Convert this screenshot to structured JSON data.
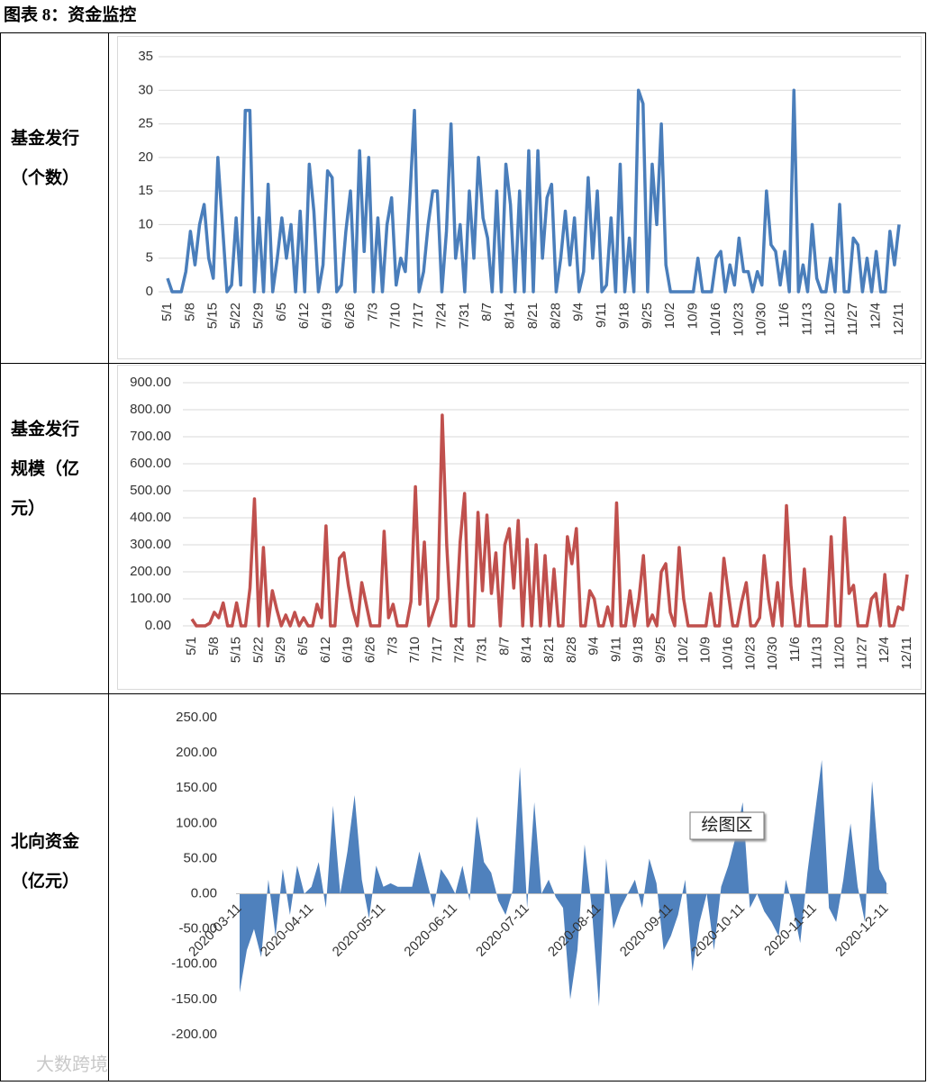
{
  "title": "图表 8：资金监控",
  "rows": [
    {
      "label": [
        "基金发行",
        "（个数）"
      ]
    },
    {
      "label": [
        "基金发行",
        "规模（亿",
        "元）"
      ]
    },
    {
      "label": [
        "北向资金",
        "（亿元）"
      ]
    }
  ],
  "watermark": "大数跨境",
  "chart_data": [
    {
      "type": "line",
      "color": "#4a7ebb",
      "grid": true,
      "categories": [
        "5/1",
        null,
        null,
        null,
        null,
        "5/8",
        null,
        null,
        null,
        null,
        "5/15",
        null,
        null,
        null,
        null,
        "5/22",
        null,
        null,
        null,
        null,
        "5/29",
        null,
        null,
        null,
        null,
        "6/5",
        null,
        null,
        null,
        null,
        "6/12",
        null,
        null,
        null,
        null,
        "6/19",
        null,
        null,
        null,
        null,
        "6/26",
        null,
        null,
        null,
        null,
        "7/3",
        null,
        null,
        null,
        null,
        "7/10",
        null,
        null,
        null,
        null,
        "7/17",
        null,
        null,
        null,
        null,
        "7/24",
        null,
        null,
        null,
        null,
        "7/31",
        null,
        null,
        null,
        null,
        "8/7",
        null,
        null,
        null,
        null,
        "8/14",
        null,
        null,
        null,
        null,
        "8/21",
        null,
        null,
        null,
        null,
        "8/28",
        null,
        null,
        null,
        null,
        "9/4",
        null,
        null,
        null,
        null,
        "9/11",
        null,
        null,
        null,
        null,
        "9/18",
        null,
        null,
        null,
        null,
        "9/25",
        null,
        null,
        null,
        null,
        "10/2",
        null,
        null,
        null,
        null,
        "10/9",
        null,
        null,
        null,
        null,
        "10/16",
        null,
        null,
        null,
        null,
        "10/23",
        null,
        null,
        null,
        null,
        "10/30",
        null,
        null,
        null,
        null,
        "11/6",
        null,
        null,
        null,
        null,
        "11/13",
        null,
        null,
        null,
        null,
        "11/20",
        null,
        null,
        null,
        null,
        "11/27",
        null,
        null,
        null,
        null,
        "12/4",
        null,
        null,
        null,
        null,
        "12/11"
      ],
      "values": [
        2,
        0,
        0,
        0,
        3,
        9,
        4,
        10,
        13,
        5,
        2,
        20,
        10,
        0,
        1,
        11,
        1,
        27,
        27,
        0,
        11,
        0,
        16,
        0,
        5,
        11,
        5,
        10,
        0,
        12,
        0,
        19,
        12,
        0,
        4,
        18,
        17,
        0,
        1,
        9,
        15,
        0,
        21,
        6,
        20,
        0,
        11,
        0,
        10,
        14,
        1,
        5,
        3,
        14,
        27,
        0,
        3,
        10,
        15,
        15,
        0,
        9,
        25,
        5,
        10,
        0,
        15,
        5,
        20,
        11,
        8,
        0,
        15,
        0,
        19,
        13,
        0,
        15,
        0,
        21,
        0,
        21,
        5,
        14,
        16,
        0,
        5,
        12,
        4,
        11,
        0,
        3,
        17,
        5,
        15,
        0,
        1,
        11,
        0,
        19,
        0,
        8,
        0,
        30,
        28,
        0,
        19,
        10,
        25,
        4,
        0,
        0,
        0,
        0,
        0,
        0,
        5,
        0,
        0,
        0,
        5,
        6,
        0,
        4,
        1,
        8,
        3,
        3,
        0,
        3,
        1,
        15,
        7,
        6,
        1,
        6,
        0,
        30,
        0,
        4,
        0,
        10,
        2,
        0,
        0,
        5,
        0,
        13,
        0,
        0,
        8,
        7,
        0,
        5,
        0,
        6,
        0,
        0,
        9,
        4,
        10
      ],
      "ylim": [
        0,
        35
      ],
      "yticks": [
        0,
        5,
        10,
        15,
        20,
        25,
        30,
        35
      ]
    },
    {
      "type": "line",
      "color": "#c0504d",
      "grid": true,
      "categories": [
        "5/1",
        null,
        null,
        null,
        null,
        "5/8",
        null,
        null,
        null,
        null,
        "5/15",
        null,
        null,
        null,
        null,
        "5/22",
        null,
        null,
        null,
        null,
        "5/29",
        null,
        null,
        null,
        null,
        "6/5",
        null,
        null,
        null,
        null,
        "6/12",
        null,
        null,
        null,
        null,
        "6/19",
        null,
        null,
        null,
        null,
        "6/26",
        null,
        null,
        null,
        null,
        "7/3",
        null,
        null,
        null,
        null,
        "7/10",
        null,
        null,
        null,
        null,
        "7/17",
        null,
        null,
        null,
        null,
        "7/24",
        null,
        null,
        null,
        null,
        "7/31",
        null,
        null,
        null,
        null,
        "8/7",
        null,
        null,
        null,
        null,
        "8/14",
        null,
        null,
        null,
        null,
        "8/21",
        null,
        null,
        null,
        null,
        "8/28",
        null,
        null,
        null,
        null,
        "9/4",
        null,
        null,
        null,
        null,
        "9/11",
        null,
        null,
        null,
        null,
        "9/18",
        null,
        null,
        null,
        null,
        "9/25",
        null,
        null,
        null,
        null,
        "10/2",
        null,
        null,
        null,
        null,
        "10/9",
        null,
        null,
        null,
        null,
        "10/16",
        null,
        null,
        null,
        null,
        "10/23",
        null,
        null,
        null,
        null,
        "10/30",
        null,
        null,
        null,
        null,
        "11/6",
        null,
        null,
        null,
        null,
        "11/13",
        null,
        null,
        null,
        null,
        "11/20",
        null,
        null,
        null,
        null,
        "11/27",
        null,
        null,
        null,
        null,
        "12/4",
        null,
        null,
        null,
        null,
        "12/11"
      ],
      "values": [
        25,
        0,
        0,
        0,
        10,
        50,
        30,
        85,
        0,
        0,
        85,
        0,
        0,
        140,
        470,
        0,
        290,
        0,
        130,
        60,
        0,
        40,
        0,
        50,
        0,
        30,
        0,
        0,
        80,
        30,
        370,
        0,
        0,
        250,
        270,
        150,
        60,
        0,
        160,
        80,
        0,
        0,
        0,
        350,
        30,
        80,
        0,
        0,
        0,
        90,
        515,
        80,
        310,
        0,
        50,
        100,
        780,
        300,
        0,
        0,
        310,
        490,
        0,
        0,
        420,
        130,
        410,
        120,
        270,
        0,
        300,
        360,
        140,
        390,
        0,
        320,
        0,
        300,
        0,
        260,
        0,
        210,
        0,
        0,
        330,
        230,
        360,
        0,
        0,
        130,
        100,
        0,
        0,
        70,
        0,
        455,
        0,
        0,
        130,
        0,
        100,
        260,
        0,
        40,
        0,
        200,
        230,
        50,
        0,
        290,
        100,
        0,
        0,
        0,
        0,
        0,
        120,
        0,
        0,
        250,
        120,
        0,
        0,
        90,
        160,
        0,
        0,
        30,
        260,
        100,
        0,
        160,
        0,
        445,
        150,
        0,
        0,
        210,
        0,
        0,
        0,
        0,
        0,
        330,
        0,
        0,
        400,
        120,
        150,
        0,
        0,
        0,
        100,
        120,
        0,
        190,
        0,
        0,
        70,
        60,
        190
      ],
      "ylim": [
        0,
        900
      ],
      "yticks": [
        {
          "value": 0,
          "label": "0.00"
        },
        {
          "value": 100,
          "label": "100.00"
        },
        {
          "value": 200,
          "label": "200.00"
        },
        {
          "value": 300,
          "label": "300.00"
        },
        {
          "value": 400,
          "label": "400.00"
        },
        {
          "value": 500,
          "label": "500.00"
        },
        {
          "value": 600,
          "label": "600.00"
        },
        {
          "value": 700,
          "label": "700.00"
        },
        {
          "value": 800,
          "label": "800.00"
        },
        {
          "value": 900,
          "label": "900.00"
        }
      ]
    },
    {
      "type": "area",
      "color": "#4f81bd",
      "grid": false,
      "annotation": "绘图区",
      "categories": [
        "2020-03-11",
        null,
        null,
        null,
        null,
        null,
        null,
        null,
        null,
        null,
        "2020-04-11",
        null,
        null,
        null,
        null,
        null,
        null,
        null,
        null,
        null,
        "2020-05-11",
        null,
        null,
        null,
        null,
        null,
        null,
        null,
        null,
        null,
        "2020-06-11",
        null,
        null,
        null,
        null,
        null,
        null,
        null,
        null,
        null,
        "2020-07-11",
        null,
        null,
        null,
        null,
        null,
        null,
        null,
        null,
        null,
        "2020-08-11",
        null,
        null,
        null,
        null,
        null,
        null,
        null,
        null,
        null,
        "2020-09-11",
        null,
        null,
        null,
        null,
        null,
        null,
        null,
        null,
        null,
        "2020-10-11",
        null,
        null,
        null,
        null,
        null,
        null,
        null,
        null,
        null,
        "2020-11-11",
        null,
        null,
        null,
        null,
        null,
        null,
        null,
        null,
        null,
        "2020-12-11"
      ],
      "values": [
        -140,
        -80,
        -50,
        -90,
        20,
        -60,
        35,
        -30,
        40,
        0,
        10,
        45,
        -20,
        125,
        0,
        60,
        140,
        20,
        -35,
        40,
        10,
        15,
        10,
        10,
        10,
        60,
        20,
        -20,
        35,
        20,
        0,
        40,
        -10,
        110,
        45,
        30,
        -10,
        -30,
        5,
        180,
        -20,
        130,
        0,
        20,
        -5,
        -20,
        -150,
        -80,
        70,
        -20,
        -160,
        50,
        -50,
        -20,
        0,
        20,
        -20,
        50,
        15,
        -80,
        -60,
        -30,
        20,
        -110,
        -40,
        0,
        -80,
        10,
        40,
        80,
        130,
        -20,
        0,
        -25,
        -40,
        -60,
        20,
        -20,
        -70,
        30,
        110,
        190,
        -20,
        -40,
        20,
        100,
        10,
        -40,
        160,
        35,
        15
      ],
      "ylim": [
        -200,
        250
      ],
      "yticks": [
        {
          "value": -200,
          "label": "-200.00"
        },
        {
          "value": -150,
          "label": "-150.00"
        },
        {
          "value": -100,
          "label": "-100.00"
        },
        {
          "value": -50,
          "label": "-50.00"
        },
        {
          "value": 0,
          "label": "0.00"
        },
        {
          "value": 50,
          "label": "50.00"
        },
        {
          "value": 100,
          "label": "100.00"
        },
        {
          "value": 150,
          "label": "150.00"
        },
        {
          "value": 200,
          "label": "200.00"
        },
        {
          "value": 250,
          "label": "250.00"
        }
      ]
    }
  ]
}
